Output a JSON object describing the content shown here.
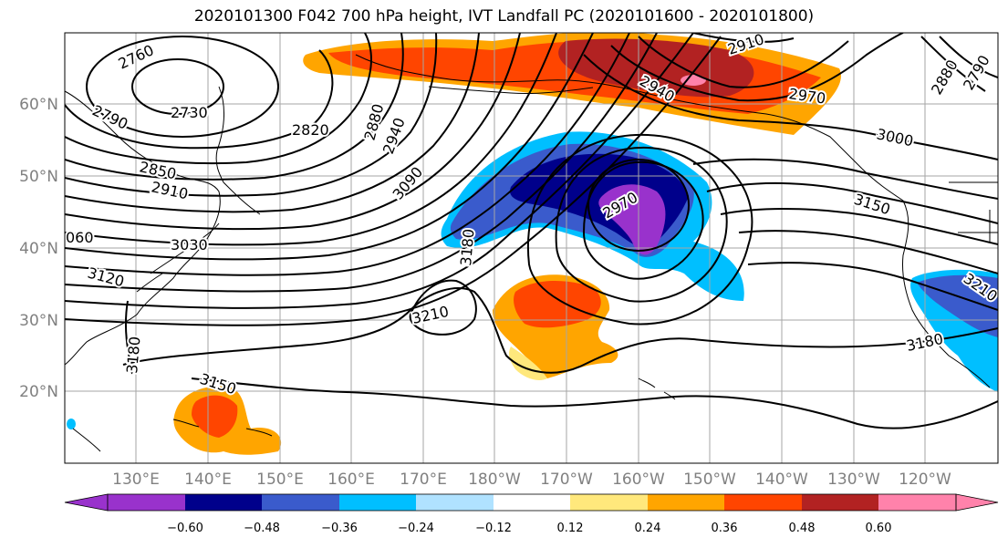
{
  "title": "2020101300 F042 700 hPa height, IVT Landfall PC (2020101600 - 2020101800)",
  "lat_labels": [
    "60°N",
    "50°N",
    "40°N",
    "30°N",
    "20°N"
  ],
  "lon_labels": [
    "130°E",
    "140°E",
    "150°E",
    "160°E",
    "170°E",
    "180°W",
    "170°W",
    "160°W",
    "150°W",
    "140°W",
    "130°W",
    "120°W"
  ],
  "contour_labels": [
    {
      "id": "c2760",
      "text": "2760"
    },
    {
      "id": "c2730",
      "text": "2730"
    },
    {
      "id": "c2790",
      "text": "2790"
    },
    {
      "id": "c2820",
      "text": "2820"
    },
    {
      "id": "c2880",
      "text": "2880"
    },
    {
      "id": "c2940a",
      "text": "2940"
    },
    {
      "id": "c2850",
      "text": "2850"
    },
    {
      "id": "c2910a",
      "text": "2910"
    },
    {
      "id": "c3090",
      "text": "3090"
    },
    {
      "id": "c060",
      "text": "060"
    },
    {
      "id": "c3030",
      "text": "3030"
    },
    {
      "id": "c3120",
      "text": "3120"
    },
    {
      "id": "c3180a",
      "text": "3180"
    },
    {
      "id": "c3180b",
      "text": "3180"
    },
    {
      "id": "c2970a",
      "text": "2970"
    },
    {
      "id": "c3210a",
      "text": "3210"
    },
    {
      "id": "c3150a",
      "text": "3150"
    },
    {
      "id": "c2910b",
      "text": "2910"
    },
    {
      "id": "c2940b",
      "text": "2940"
    },
    {
      "id": "c2970b",
      "text": "2970"
    },
    {
      "id": "c3000",
      "text": "3000"
    },
    {
      "id": "c3150b",
      "text": "3150"
    },
    {
      "id": "c3180c",
      "text": "3180"
    },
    {
      "id": "c3210b",
      "text": "3210"
    },
    {
      "id": "c2880b",
      "text": "2880"
    },
    {
      "id": "c2790b",
      "text": "2790"
    }
  ],
  "colorbar": {
    "ticks": [
      "−0.60",
      "−0.48",
      "−0.36",
      "−0.24",
      "−0.12",
      "0.12",
      "0.24",
      "0.36",
      "0.48",
      "0.60"
    ],
    "colors": [
      "#9932cc",
      "#00008b",
      "#3a5bcc",
      "#00bfff",
      "#b0e2ff",
      "#ffffff",
      "#ffe87c",
      "#ffa500",
      "#ff4500",
      "#b22222",
      "#ff82ab"
    ]
  }
}
